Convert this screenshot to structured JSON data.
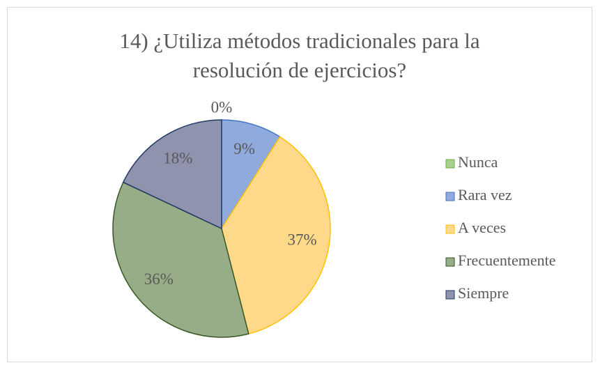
{
  "chart_data": {
    "type": "pie",
    "title": "14) ¿Utiliza métodos tradicionales para la resolución de ejercicios?",
    "categories": [
      "Nunca",
      "Rara vez",
      "A veces",
      "Frecuentemente",
      "Siempre"
    ],
    "values": [
      0,
      9,
      37,
      36,
      18
    ],
    "value_labels": [
      "0%",
      "9%",
      "37%",
      "36%",
      "18%"
    ],
    "colors": [
      "#a9d18e",
      "#8faadc",
      "#ffd98a",
      "#96ad88",
      "#8f93ad"
    ],
    "edge_colors": [
      "#70ad47",
      "#4472c4",
      "#ffc000",
      "#375623",
      "#1f3864"
    ],
    "legend": "right"
  }
}
